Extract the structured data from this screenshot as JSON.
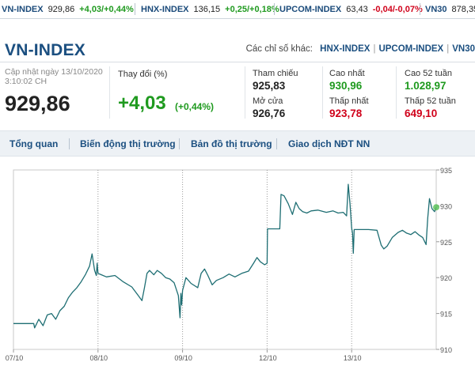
{
  "ticker": [
    {
      "name": "VN-INDEX",
      "value": "929,86",
      "change": "+4,03/+0,44%",
      "dir": "up"
    },
    {
      "name": "HNX-INDEX",
      "value": "136,15",
      "change": "+0,25/+0,18%",
      "dir": "up"
    },
    {
      "name": "UPCOM-INDEX",
      "value": "63,43",
      "change": "-0,04/-0,07%",
      "dir": "down"
    },
    {
      "name": "VN30",
      "value": "878,35",
      "change": "",
      "dir": "up"
    }
  ],
  "header": {
    "title": "VN-INDEX",
    "other_label": "Các chỉ số khác:",
    "other_links": [
      "HNX-INDEX",
      "UPCOM-INDEX",
      "VN30"
    ]
  },
  "quote": {
    "updated_line1": "Cập nhật ngày 13/10/2020",
    "updated_line2": "3:10:02 CH",
    "price": "929,86",
    "change_label": "Thay đổi (%)",
    "change": "+4,03",
    "change_pct": "(+0,44%)",
    "ref_label": "Tham chiếu",
    "ref": "925,83",
    "open_label": "Mở cửa",
    "open": "926,76",
    "high_label": "Cao nhất",
    "high": "930,96",
    "low_label": "Thấp nhất",
    "low": "923,78",
    "high52_label": "Cao 52 tuần",
    "high52": "1.028,97",
    "low52_label": "Thấp 52 tuần",
    "low52": "649,10"
  },
  "tabs": [
    "Tổng quan",
    "Biến động thị trường",
    "Bản đồ thị trường",
    "Giao dịch NĐT NN"
  ],
  "colors": {
    "up": "#1f9a1f",
    "down": "#d0021b",
    "brand": "#1b4f80",
    "line": "#1e6e73"
  },
  "chart_data": {
    "type": "line",
    "title": "",
    "xlabel": "",
    "ylabel": "",
    "x_ticks": [
      "07/10",
      "08/10",
      "09/10",
      "12/10",
      "13/10"
    ],
    "y_ticks": [
      910,
      915,
      920,
      925,
      930,
      935
    ],
    "ylim": [
      910,
      935
    ],
    "grid": "vertical dotted at day boundaries",
    "series": [
      {
        "values": [
          [
            0.0,
            913.6
          ],
          [
            0.1,
            913.6
          ],
          [
            0.2,
            913.6
          ],
          [
            0.24,
            913.6
          ],
          [
            0.25,
            913.0
          ],
          [
            0.3,
            914.2
          ],
          [
            0.35,
            913.3
          ],
          [
            0.4,
            914.8
          ],
          [
            0.45,
            915.0
          ],
          [
            0.5,
            914.2
          ],
          [
            0.55,
            915.4
          ],
          [
            0.6,
            916.0
          ],
          [
            0.65,
            917.2
          ],
          [
            0.7,
            918.0
          ],
          [
            0.75,
            918.6
          ],
          [
            0.8,
            919.4
          ],
          [
            0.85,
            920.4
          ],
          [
            0.9,
            921.6
          ],
          [
            0.93,
            923.3
          ],
          [
            0.96,
            921.0
          ],
          [
            0.98,
            920.3
          ],
          [
            0.99,
            922.0
          ],
          [
            1.0,
            920.6
          ],
          [
            1.04,
            920.4
          ],
          [
            1.1,
            920.1
          ],
          [
            1.2,
            920.3
          ],
          [
            1.3,
            919.4
          ],
          [
            1.4,
            918.7
          ],
          [
            1.47,
            917.6
          ],
          [
            1.52,
            916.8
          ],
          [
            1.55,
            918.6
          ],
          [
            1.58,
            920.6
          ],
          [
            1.61,
            921.0
          ],
          [
            1.66,
            920.4
          ],
          [
            1.7,
            921.0
          ],
          [
            1.75,
            920.6
          ],
          [
            1.8,
            920.0
          ],
          [
            1.85,
            919.8
          ],
          [
            1.9,
            919.3
          ],
          [
            1.95,
            917.5
          ],
          [
            1.97,
            914.4
          ],
          [
            1.98,
            917.8
          ],
          [
            1.99,
            916.2
          ],
          [
            2.0,
            918.2
          ],
          [
            2.04,
            920.0
          ],
          [
            2.1,
            919.2
          ],
          [
            2.18,
            918.6
          ],
          [
            2.22,
            920.6
          ],
          [
            2.26,
            921.2
          ],
          [
            2.3,
            920.3
          ],
          [
            2.35,
            919.0
          ],
          [
            2.4,
            919.6
          ],
          [
            2.48,
            920.0
          ],
          [
            2.55,
            920.5
          ],
          [
            2.62,
            920.1
          ],
          [
            2.7,
            920.6
          ],
          [
            2.78,
            920.9
          ],
          [
            2.84,
            922.0
          ],
          [
            2.88,
            922.8
          ],
          [
            2.92,
            922.2
          ],
          [
            2.97,
            921.8
          ],
          [
            3.0,
            922.0
          ],
          [
            3.005,
            926.8
          ],
          [
            3.05,
            926.8
          ],
          [
            3.1,
            926.8
          ],
          [
            3.15,
            926.8
          ],
          [
            3.165,
            931.6
          ],
          [
            3.2,
            931.4
          ],
          [
            3.25,
            930.3
          ],
          [
            3.3,
            928.8
          ],
          [
            3.34,
            930.5
          ],
          [
            3.38,
            929.6
          ],
          [
            3.42,
            929.2
          ],
          [
            3.47,
            929.0
          ],
          [
            3.52,
            929.3
          ],
          [
            3.6,
            929.4
          ],
          [
            3.7,
            929.1
          ],
          [
            3.78,
            929.3
          ],
          [
            3.84,
            929.0
          ],
          [
            3.9,
            929.1
          ],
          [
            3.94,
            928.6
          ],
          [
            3.96,
            933.0
          ],
          [
            3.98,
            930.3
          ],
          [
            3.99,
            928.7
          ],
          [
            4.0,
            926.9
          ],
          [
            4.01,
            926.2
          ],
          [
            4.02,
            923.4
          ],
          [
            4.03,
            926.7
          ],
          [
            4.1,
            926.7
          ],
          [
            4.2,
            926.7
          ],
          [
            4.3,
            926.6
          ],
          [
            4.35,
            924.5
          ],
          [
            4.38,
            924.0
          ],
          [
            4.42,
            924.4
          ],
          [
            4.48,
            925.6
          ],
          [
            4.55,
            926.3
          ],
          [
            4.6,
            926.6
          ],
          [
            4.65,
            926.2
          ],
          [
            4.7,
            926.0
          ],
          [
            4.75,
            926.4
          ],
          [
            4.8,
            925.9
          ],
          [
            4.84,
            925.6
          ],
          [
            4.88,
            924.6
          ],
          [
            4.9,
            928.3
          ],
          [
            4.92,
            931.0
          ],
          [
            4.95,
            929.6
          ],
          [
            4.98,
            929.2
          ],
          [
            5.0,
            929.8
          ]
        ]
      }
    ]
  }
}
